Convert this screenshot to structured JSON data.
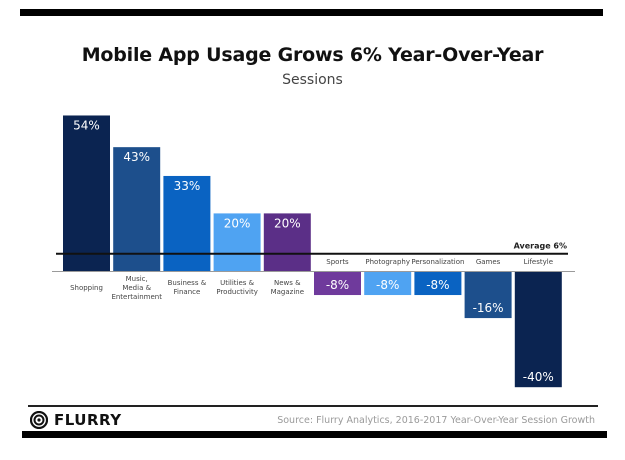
{
  "chart_data": {
    "type": "bar",
    "title": "Mobile App Usage Grows 6% Year-Over-Year",
    "subtitle": "Sessions",
    "xlabel": "",
    "ylabel": "",
    "categories": [
      "Shopping",
      "Music, Media & Entertainment",
      "Business & Finance",
      "Utilities & Productivity",
      "News & Magazine",
      "Sports",
      "Photography",
      "Personalization",
      "Games",
      "Lifestyle"
    ],
    "category_label_lines": [
      [
        "Shopping"
      ],
      [
        "Music,",
        "Media &",
        "Entertainment"
      ],
      [
        "Business &",
        "Finance"
      ],
      [
        "Utilities &",
        "Productivity"
      ],
      [
        "News &",
        "Magazine"
      ],
      [
        "Sports"
      ],
      [
        "Photography"
      ],
      [
        "Personalization"
      ],
      [
        "Games"
      ],
      [
        "Lifestyle"
      ]
    ],
    "values": [
      54,
      43,
      33,
      20,
      20,
      -8,
      -8,
      -8,
      -16,
      -40
    ],
    "value_labels": [
      "54%",
      "43%",
      "33%",
      "20%",
      "20%",
      "-8%",
      "-8%",
      "-8%",
      "-16%",
      "-40%"
    ],
    "colors": [
      "#0b2451",
      "#1d4f8c",
      "#0a63c2",
      "#4fa3f2",
      "#5b2f87",
      "#6f3a9c",
      "#4fa3f2",
      "#0a63c2",
      "#1d4f8c",
      "#0b2451"
    ],
    "ylim": [
      -40,
      54
    ],
    "reference_line": {
      "value": 6,
      "label": "Average 6%"
    },
    "grid": false,
    "legend": "none"
  },
  "footer": {
    "brand": "FLURRY",
    "source": "Source: Flurry Analytics, 2016-2017 Year-Over-Year Session Growth"
  }
}
